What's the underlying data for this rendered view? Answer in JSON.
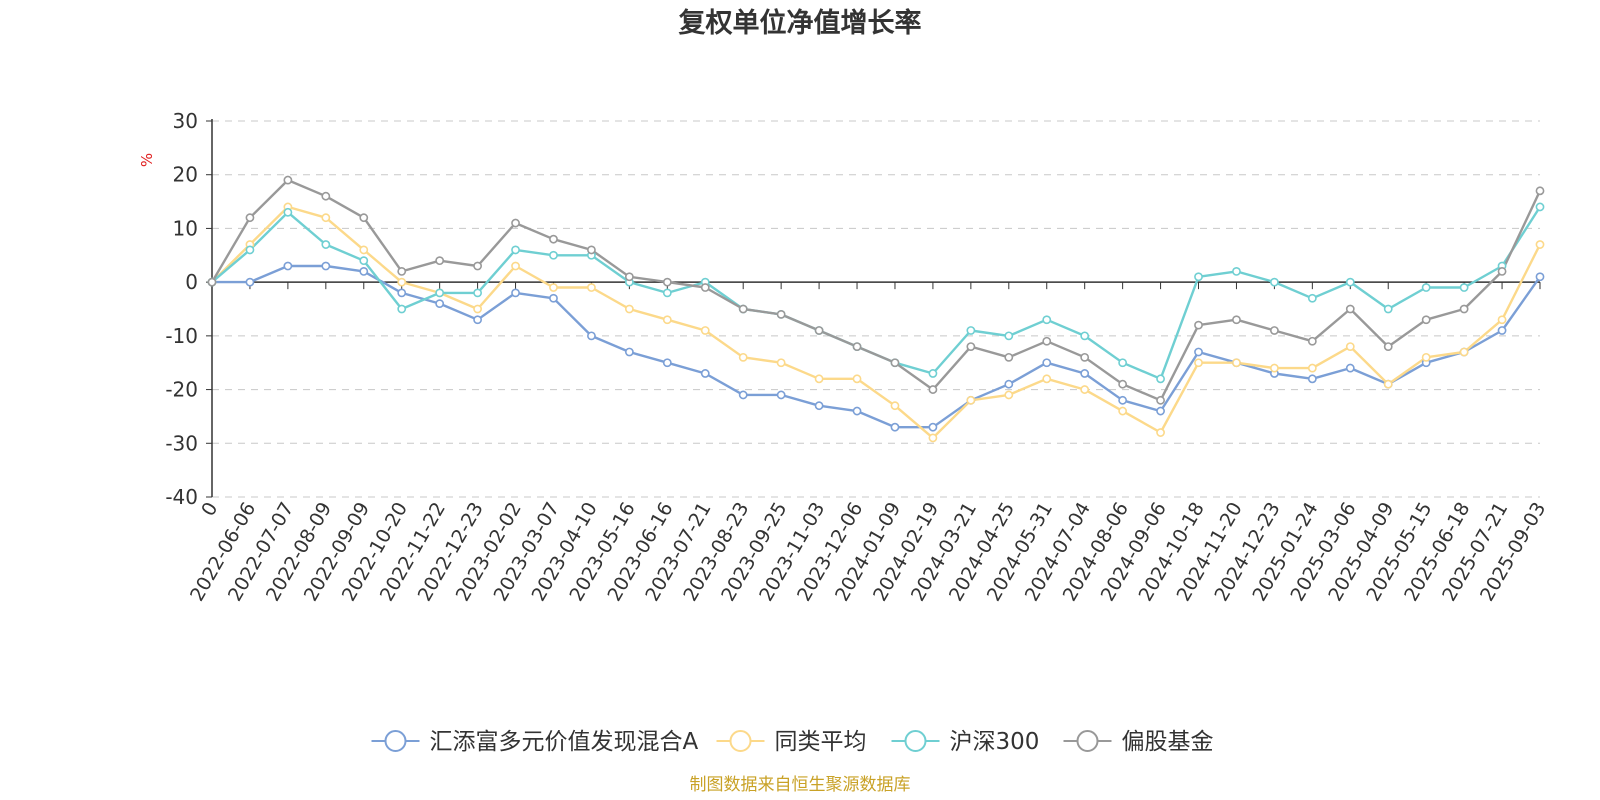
{
  "title": "复权单位净值增长率",
  "source": "制图数据来自恒生聚源数据库",
  "chart_data": {
    "type": "line",
    "title": "复权单位净值增长率",
    "ylabel": "%",
    "xlabel": "",
    "ylim": [
      -40,
      30
    ],
    "yticks": [
      30,
      20,
      10,
      0,
      -10,
      -20,
      -30,
      -40
    ],
    "x_tick_labels": [
      "0",
      "2022-06-06",
      "2022-07-07",
      "2022-08-09",
      "2022-09-09",
      "2022-10-20",
      "2022-11-22",
      "2022-12-23",
      "2023-02-02",
      "2023-03-07",
      "2023-04-10",
      "2023-05-16",
      "2023-06-16",
      "2023-07-21",
      "2023-08-23",
      "2023-09-25",
      "2023-11-03",
      "2023-12-06",
      "2024-01-09",
      "2024-02-19",
      "2024-03-21",
      "2024-04-25",
      "2024-05-31",
      "2024-07-04",
      "2024-08-06",
      "2024-09-06",
      "2024-10-18",
      "2024-11-20",
      "2024-12-23",
      "2025-01-24",
      "2025-03-06",
      "2025-04-09",
      "2025-05-15",
      "2025-06-18",
      "2025-07-21",
      "2025-09-03"
    ],
    "grid": true,
    "legend_position": "bottom",
    "x": [
      "0",
      "2022-06-06",
      "2022-07-07",
      "2022-08-09",
      "2022-09-09",
      "2022-10-20",
      "2022-11-22",
      "2022-12-23",
      "2023-02-02",
      "2023-03-07",
      "2023-04-10",
      "2023-05-16",
      "2023-06-16",
      "2023-07-21",
      "2023-08-23",
      "2023-09-25",
      "2023-11-03",
      "2023-12-06",
      "2024-01-09",
      "2024-02-19",
      "2024-03-21",
      "2024-04-25",
      "2024-05-31",
      "2024-07-04",
      "2024-08-06",
      "2024-09-06",
      "2024-10-18",
      "2024-11-20",
      "2024-12-23",
      "2025-01-24",
      "2025-03-06",
      "2025-04-09",
      "2025-05-15",
      "2025-06-18",
      "2025-07-21",
      "2025-09-03"
    ],
    "series": [
      {
        "name": "汇添富多元价值发现混合A",
        "color": "#7b9fd6",
        "values": [
          0,
          0,
          3,
          3,
          2,
          -2,
          -4,
          -7,
          -2,
          -3,
          -10,
          -13,
          -15,
          -17,
          -21,
          -21,
          -23,
          -24,
          -27,
          -27,
          -22,
          -19,
          -15,
          -17,
          -22,
          -24,
          -13,
          -15,
          -17,
          -18,
          -16,
          -19,
          -15,
          -13,
          -9,
          1
        ]
      },
      {
        "name": "同类平均",
        "color": "#fcd98a",
        "values": [
          0,
          7,
          14,
          12,
          6,
          0,
          -2,
          -5,
          3,
          -1,
          -1,
          -5,
          -7,
          -9,
          -14,
          -15,
          -18,
          -18,
          -23,
          -29,
          -22,
          -21,
          -18,
          -20,
          -24,
          -28,
          -15,
          -15,
          -16,
          -16,
          -12,
          -19,
          -14,
          -13,
          -7,
          7
        ]
      },
      {
        "name": "沪深300",
        "color": "#6fcfd2",
        "values": [
          0,
          6,
          13,
          7,
          4,
          -5,
          -2,
          -2,
          6,
          5,
          5,
          0,
          -2,
          0,
          -5,
          -6,
          -9,
          -12,
          -15,
          -17,
          -9,
          -10,
          -7,
          -10,
          -15,
          -18,
          1,
          2,
          0,
          -3,
          0,
          -5,
          -1,
          -1,
          3,
          14
        ]
      },
      {
        "name": "偏股基金",
        "color": "#999999",
        "values": [
          0,
          12,
          19,
          16,
          12,
          2,
          4,
          3,
          11,
          8,
          6,
          1,
          0,
          -1,
          -5,
          -6,
          -9,
          -12,
          -15,
          -20,
          -12,
          -14,
          -11,
          -14,
          -19,
          -22,
          -8,
          -7,
          -9,
          -11,
          -5,
          -12,
          -7,
          -5,
          2,
          17
        ]
      }
    ]
  }
}
